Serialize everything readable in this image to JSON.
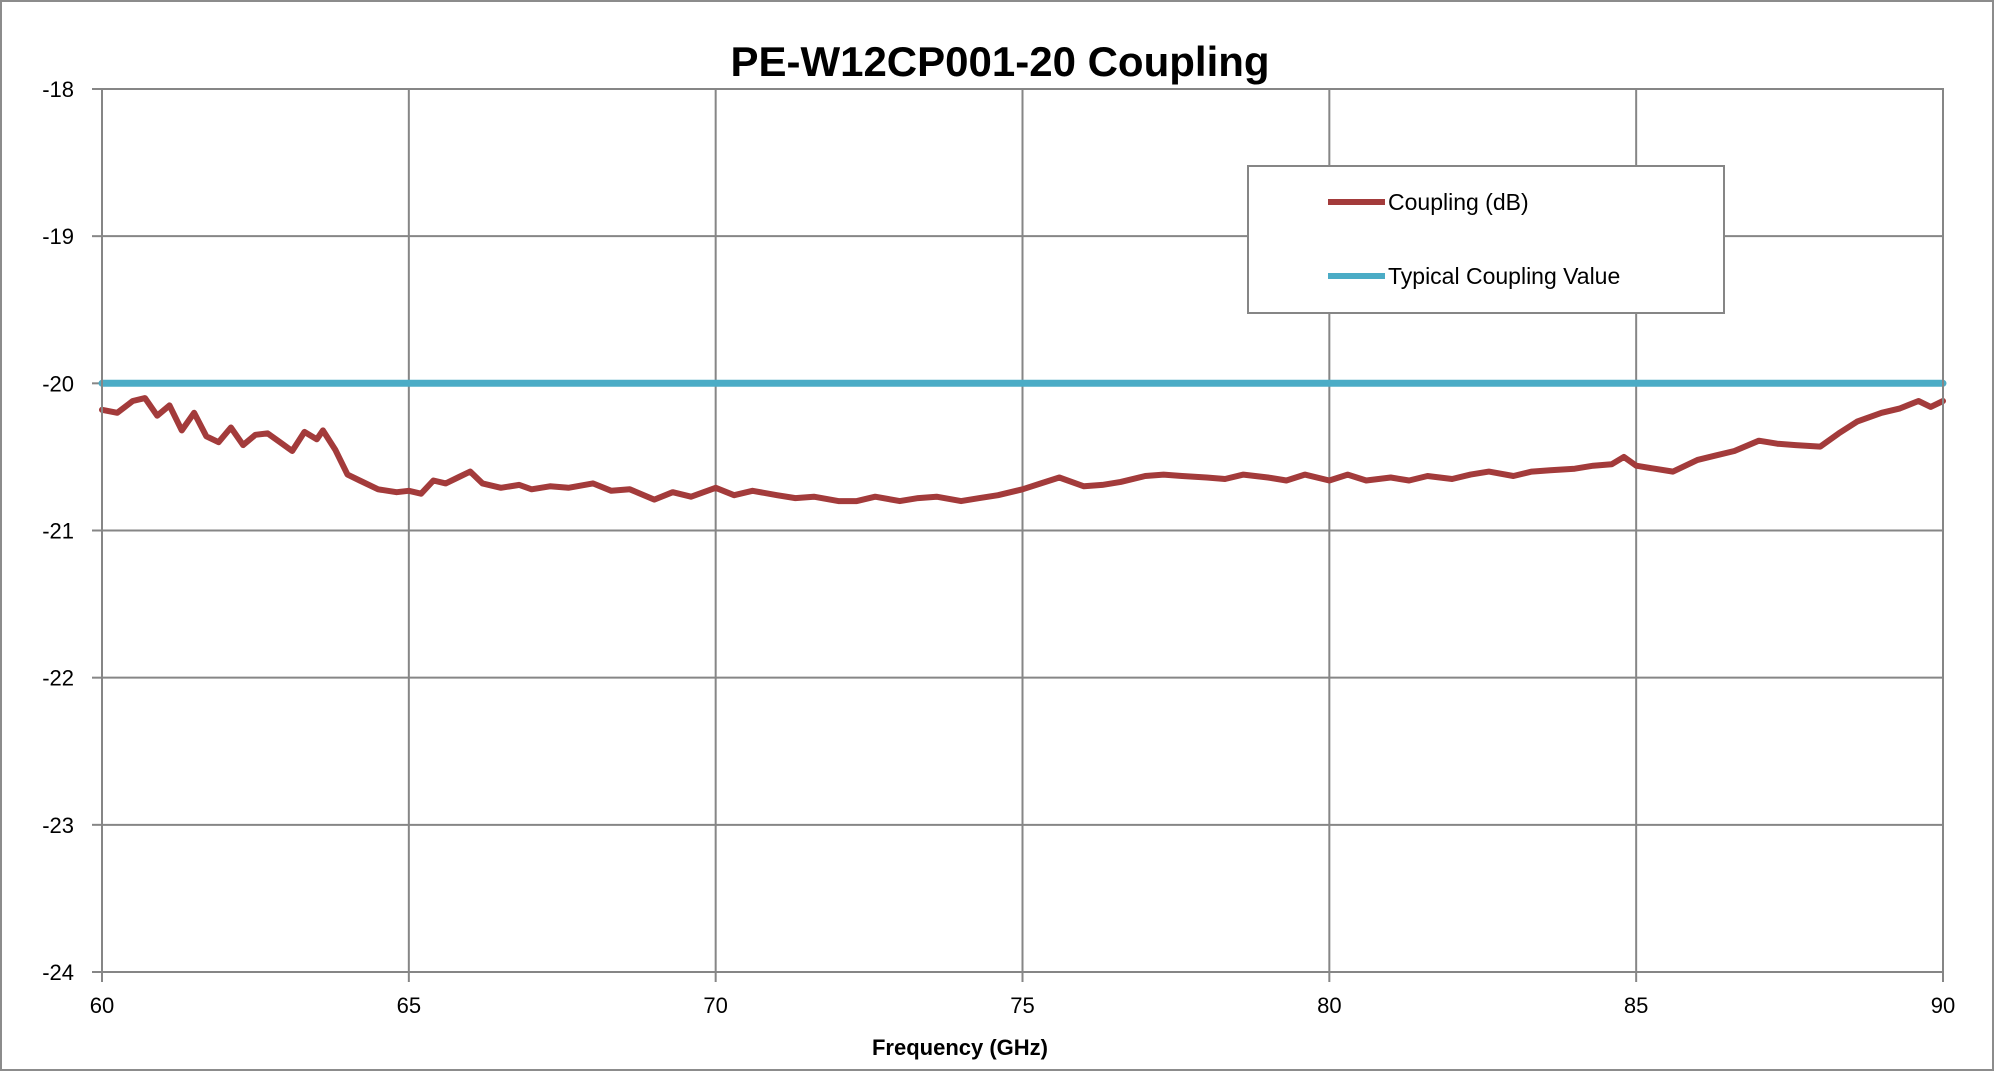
{
  "chart_data": {
    "type": "line",
    "title": "PE-W12CP001-20 Coupling",
    "xlabel": "Frequency (GHz)",
    "ylabel": "",
    "xlim": [
      60,
      90
    ],
    "ylim": [
      -24,
      -18
    ],
    "x_ticks": [
      60,
      65,
      70,
      75,
      80,
      85,
      90
    ],
    "y_ticks": [
      -18,
      -19,
      -20,
      -21,
      -22,
      -23,
      -24
    ],
    "x_tick_labels": [
      "60",
      "65",
      "70",
      "75",
      "80",
      "85",
      "90"
    ],
    "y_tick_labels": [
      "-18",
      "-19",
      "-20",
      "-21",
      "-22",
      "-23",
      "-24"
    ],
    "grid": true,
    "legend_position": "top-right",
    "series": [
      {
        "name": "Coupling (dB)",
        "color": "#a33b3b",
        "x": [
          60,
          60.25,
          60.5,
          60.7,
          60.9,
          61.1,
          61.3,
          61.5,
          61.7,
          61.9,
          62.1,
          62.3,
          62.5,
          62.7,
          62.9,
          63.1,
          63.3,
          63.5,
          63.6,
          63.8,
          64.0,
          64.2,
          64.5,
          64.8,
          65.0,
          65.2,
          65.4,
          65.6,
          65.8,
          66.0,
          66.2,
          66.5,
          66.8,
          67.0,
          67.3,
          67.6,
          68.0,
          68.3,
          68.6,
          69.0,
          69.3,
          69.6,
          70.0,
          70.3,
          70.6,
          71.0,
          71.3,
          71.6,
          72.0,
          72.3,
          72.6,
          73.0,
          73.3,
          73.6,
          74.0,
          74.3,
          74.6,
          75.0,
          75.3,
          75.6,
          76.0,
          76.3,
          76.6,
          77.0,
          77.3,
          77.6,
          78.0,
          78.3,
          78.6,
          79.0,
          79.3,
          79.6,
          80.0,
          80.3,
          80.6,
          81.0,
          81.3,
          81.6,
          82.0,
          82.3,
          82.6,
          83.0,
          83.3,
          83.6,
          84.0,
          84.3,
          84.6,
          84.8,
          85.0,
          85.3,
          85.6,
          86.0,
          86.3,
          86.6,
          87.0,
          87.3,
          87.6,
          88.0,
          88.3,
          88.6,
          89.0,
          89.3,
          89.6,
          89.8,
          90.0
        ],
        "y": [
          -20.18,
          -20.2,
          -20.12,
          -20.1,
          -20.22,
          -20.15,
          -20.32,
          -20.2,
          -20.36,
          -20.4,
          -20.3,
          -20.42,
          -20.35,
          -20.34,
          -20.4,
          -20.46,
          -20.33,
          -20.38,
          -20.32,
          -20.45,
          -20.62,
          -20.66,
          -20.72,
          -20.74,
          -20.73,
          -20.75,
          -20.66,
          -20.68,
          -20.64,
          -20.6,
          -20.68,
          -20.71,
          -20.69,
          -20.72,
          -20.7,
          -20.71,
          -20.68,
          -20.73,
          -20.72,
          -20.79,
          -20.74,
          -20.77,
          -20.71,
          -20.76,
          -20.73,
          -20.76,
          -20.78,
          -20.77,
          -20.8,
          -20.8,
          -20.77,
          -20.8,
          -20.78,
          -20.77,
          -20.8,
          -20.78,
          -20.76,
          -20.72,
          -20.68,
          -20.64,
          -20.7,
          -20.69,
          -20.67,
          -20.63,
          -20.62,
          -20.63,
          -20.64,
          -20.65,
          -20.62,
          -20.64,
          -20.66,
          -20.62,
          -20.66,
          -20.62,
          -20.66,
          -20.64,
          -20.66,
          -20.63,
          -20.65,
          -20.62,
          -20.6,
          -20.63,
          -20.6,
          -20.59,
          -20.58,
          -20.56,
          -20.55,
          -20.5,
          -20.56,
          -20.58,
          -20.6,
          -20.52,
          -20.49,
          -20.46,
          -20.39,
          -20.41,
          -20.42,
          -20.43,
          -20.34,
          -20.26,
          -20.2,
          -20.17,
          -20.12,
          -20.16,
          -20.12
        ]
      },
      {
        "name": "Typical Coupling Value",
        "color": "#4bacc6",
        "x": [
          60,
          90
        ],
        "y": [
          -20,
          -20
        ]
      }
    ]
  }
}
